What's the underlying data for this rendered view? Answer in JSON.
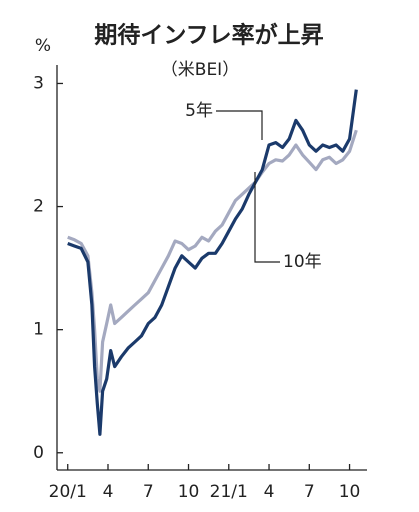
{
  "chart_data": {
    "type": "line",
    "title": "期待インフレ率が上昇",
    "subtitle": "（米BEI）",
    "y_label": "%",
    "x": [
      0,
      0.5,
      1,
      1.5,
      1.8,
      2.0,
      2.2,
      2.4,
      2.6,
      2.9,
      3.2,
      3.5,
      4,
      4.5,
      5,
      5.5,
      6,
      6.5,
      7,
      7.5,
      8,
      8.5,
      9,
      9.5,
      10,
      10.5,
      11,
      11.5,
      12,
      12.5,
      13,
      13.5,
      14,
      14.5,
      15,
      15.5,
      16,
      16.5,
      17,
      17.5,
      18,
      18.5,
      19,
      19.5,
      20,
      20.5,
      21,
      21.5
    ],
    "series": [
      {
        "name": "5年",
        "color": "#1b3a6b",
        "values": [
          1.7,
          1.68,
          1.66,
          1.55,
          1.2,
          0.7,
          0.4,
          0.15,
          0.5,
          0.6,
          0.83,
          0.7,
          0.78,
          0.85,
          0.9,
          0.95,
          1.05,
          1.1,
          1.2,
          1.35,
          1.5,
          1.6,
          1.55,
          1.5,
          1.58,
          1.62,
          1.62,
          1.7,
          1.8,
          1.9,
          1.98,
          2.1,
          2.2,
          2.3,
          2.5,
          2.52,
          2.48,
          2.55,
          2.7,
          2.62,
          2.5,
          2.45,
          2.5,
          2.48,
          2.5,
          2.45,
          2.55,
          2.95
        ]
      },
      {
        "name": "10年",
        "color": "#a4a9c0",
        "values": [
          1.75,
          1.73,
          1.7,
          1.6,
          1.3,
          1.0,
          0.6,
          0.5,
          0.9,
          1.05,
          1.2,
          1.05,
          1.1,
          1.15,
          1.2,
          1.25,
          1.3,
          1.4,
          1.5,
          1.6,
          1.72,
          1.7,
          1.65,
          1.68,
          1.75,
          1.72,
          1.8,
          1.85,
          1.95,
          2.05,
          2.1,
          2.15,
          2.2,
          2.28,
          2.35,
          2.38,
          2.37,
          2.42,
          2.5,
          2.42,
          2.36,
          2.3,
          2.38,
          2.4,
          2.35,
          2.38,
          2.45,
          2.62
        ]
      }
    ],
    "xlim": [
      -0.8,
      22.3
    ],
    "xticks": [
      {
        "value": 0,
        "label": "20/1"
      },
      {
        "value": 3,
        "label": "4"
      },
      {
        "value": 6,
        "label": "7"
      },
      {
        "value": 9,
        "label": "10"
      },
      {
        "value": 12,
        "label": "21/1"
      },
      {
        "value": 15,
        "label": "4"
      },
      {
        "value": 18,
        "label": "7"
      },
      {
        "value": 21,
        "label": "10"
      }
    ],
    "ylim": [
      -0.14,
      3.15
    ],
    "yticks": [
      0,
      1,
      2,
      3
    ],
    "grid": false
  }
}
